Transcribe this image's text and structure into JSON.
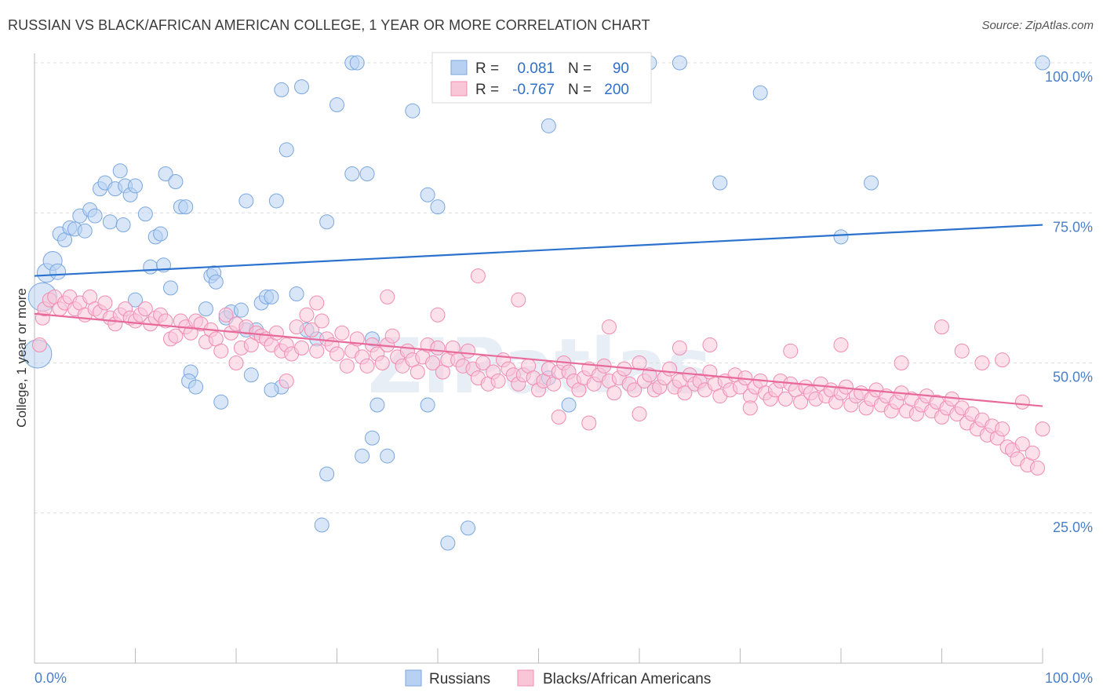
{
  "header": {
    "title": "RUSSIAN VS BLACK/AFRICAN AMERICAN COLLEGE, 1 YEAR OR MORE CORRELATION CHART",
    "source": "Source: ZipAtlas.com"
  },
  "watermark": "ZIPatlas",
  "chart_data": {
    "type": "scatter",
    "ylabel": "College, 1 year or more",
    "xlim": [
      0,
      100
    ],
    "ylim": [
      0,
      100
    ],
    "x_tick_labels": [
      "0.0%",
      "100.0%"
    ],
    "y_ticks": [
      25,
      50,
      75,
      100
    ],
    "y_tick_labels": [
      "25.0%",
      "50.0%",
      "75.0%",
      "100.0%"
    ],
    "grid": true,
    "legend_stats": [
      {
        "r_label": "R =",
        "r_value": "0.081",
        "n_label": "N =",
        "n_value": "90"
      },
      {
        "r_label": "R =",
        "r_value": "-0.767",
        "n_label": "N =",
        "n_value": "200"
      }
    ],
    "series": [
      {
        "name": "Russians",
        "color": "#7aa7e0",
        "fill": "#b8d1f2",
        "line_color": "#2b72cf",
        "trend": [
          [
            0,
            64.5
          ],
          [
            100,
            73.0
          ]
        ],
        "points": [
          [
            0.3,
            51.5
          ],
          [
            0.8,
            61
          ],
          [
            1.2,
            65
          ],
          [
            1.8,
            67
          ],
          [
            2.3,
            65.2
          ],
          [
            2.5,
            71.5
          ],
          [
            3,
            70.5
          ],
          [
            3.5,
            72.5
          ],
          [
            4,
            72.3
          ],
          [
            4.5,
            74.5
          ],
          [
            5,
            72
          ],
          [
            5.5,
            75.5
          ],
          [
            6,
            74.5
          ],
          [
            6.5,
            79
          ],
          [
            7,
            80
          ],
          [
            7.5,
            73.5
          ],
          [
            8,
            79
          ],
          [
            8.5,
            82
          ],
          [
            8.8,
            73
          ],
          [
            9,
            79.5
          ],
          [
            9.5,
            78
          ],
          [
            10,
            79.5
          ],
          [
            11,
            74.8
          ],
          [
            11.5,
            66
          ],
          [
            12,
            71
          ],
          [
            12.5,
            71.5
          ],
          [
            12.8,
            66.3
          ],
          [
            13,
            81.5
          ],
          [
            14,
            80.2
          ],
          [
            14.5,
            76
          ],
          [
            15,
            76
          ],
          [
            13.5,
            62.5
          ],
          [
            10,
            60.5
          ],
          [
            15.5,
            48.5
          ],
          [
            15.3,
            47
          ],
          [
            17,
            59
          ],
          [
            17.5,
            64.5
          ],
          [
            17.8,
            65
          ],
          [
            18,
            63.5
          ],
          [
            19,
            57.5
          ],
          [
            19.5,
            58.5
          ],
          [
            20.5,
            58.8
          ],
          [
            21,
            77
          ],
          [
            21,
            55.5
          ],
          [
            21.5,
            48
          ],
          [
            22,
            55.5
          ],
          [
            22.5,
            60
          ],
          [
            23,
            61
          ],
          [
            23.5,
            61
          ],
          [
            24,
            77
          ],
          [
            24.5,
            46
          ],
          [
            23.5,
            45.5
          ],
          [
            16,
            46
          ],
          [
            18.5,
            43.5
          ],
          [
            24.5,
            95.5
          ],
          [
            25,
            85.5
          ],
          [
            26,
            61.5
          ],
          [
            26.5,
            96
          ],
          [
            27,
            55.5
          ],
          [
            28,
            54
          ],
          [
            29,
            73.5
          ],
          [
            30,
            93
          ],
          [
            31.5,
            81.5
          ],
          [
            31.5,
            100
          ],
          [
            32,
            100
          ],
          [
            33,
            81.5
          ],
          [
            33.5,
            54
          ],
          [
            33.5,
            37.5
          ],
          [
            34,
            43
          ],
          [
            35,
            34.5
          ],
          [
            32.5,
            34.5
          ],
          [
            29,
            31.5
          ],
          [
            28.5,
            23
          ],
          [
            37.5,
            92
          ],
          [
            39,
            43
          ],
          [
            39,
            78
          ],
          [
            40,
            76
          ],
          [
            41,
            20
          ],
          [
            43,
            22.5
          ],
          [
            47,
            100
          ],
          [
            51,
            89.5
          ],
          [
            51,
            47.5
          ],
          [
            53,
            43
          ],
          [
            61,
            100
          ],
          [
            64,
            100
          ],
          [
            68,
            80
          ],
          [
            72,
            95
          ],
          [
            80,
            71
          ],
          [
            83,
            80
          ],
          [
            100,
            100
          ]
        ]
      },
      {
        "name": "Blacks/African Americans",
        "color": "#f08cb0",
        "fill": "#f9c6d8",
        "line_color": "#e86a9a",
        "trend": [
          [
            0,
            58.2
          ],
          [
            100,
            42.8
          ]
        ],
        "points": [
          [
            0.5,
            53
          ],
          [
            0.8,
            57.5
          ],
          [
            1,
            59
          ],
          [
            1.5,
            60.5
          ],
          [
            2,
            61
          ],
          [
            2.5,
            59
          ],
          [
            3,
            60
          ],
          [
            3.5,
            61
          ],
          [
            4,
            59
          ],
          [
            4.5,
            60
          ],
          [
            5,
            58
          ],
          [
            5.5,
            61
          ],
          [
            6,
            59
          ],
          [
            6.5,
            58.5
          ],
          [
            7,
            60
          ],
          [
            7.5,
            57.5
          ],
          [
            8,
            56.5
          ],
          [
            8.5,
            58
          ],
          [
            9,
            59
          ],
          [
            9.5,
            57.5
          ],
          [
            10,
            57
          ],
          [
            10.5,
            58
          ],
          [
            11,
            59
          ],
          [
            11.5,
            56.5
          ],
          [
            12,
            57.5
          ],
          [
            12.5,
            58
          ],
          [
            13,
            57
          ],
          [
            13.5,
            54
          ],
          [
            14,
            54.5
          ],
          [
            14.5,
            57
          ],
          [
            15,
            56
          ],
          [
            15.5,
            55
          ],
          [
            16,
            57
          ],
          [
            16.5,
            56.5
          ],
          [
            17,
            53.5
          ],
          [
            17.5,
            55.5
          ],
          [
            18,
            54
          ],
          [
            18.5,
            52
          ],
          [
            19,
            58
          ],
          [
            19.5,
            55
          ],
          [
            20,
            56.5
          ],
          [
            20.5,
            52.5
          ],
          [
            21,
            56
          ],
          [
            21.5,
            53
          ],
          [
            22,
            55
          ],
          [
            22.5,
            54.5
          ],
          [
            23,
            54
          ],
          [
            23.5,
            53
          ],
          [
            24,
            55
          ],
          [
            24.5,
            52
          ],
          [
            25,
            53
          ],
          [
            25.5,
            51.5
          ],
          [
            26,
            56
          ],
          [
            26.5,
            52.5
          ],
          [
            27,
            58
          ],
          [
            27.5,
            55.5
          ],
          [
            28,
            52
          ],
          [
            28.5,
            57
          ],
          [
            29,
            54
          ],
          [
            29.5,
            53
          ],
          [
            30,
            51.5
          ],
          [
            30.5,
            55
          ],
          [
            31,
            49.5
          ],
          [
            31.5,
            52
          ],
          [
            32,
            54
          ],
          [
            32.5,
            51
          ],
          [
            33,
            49.5
          ],
          [
            33.5,
            53
          ],
          [
            34,
            51.5
          ],
          [
            34.5,
            50
          ],
          [
            35,
            53
          ],
          [
            35.5,
            54.5
          ],
          [
            36,
            51
          ],
          [
            36.5,
            49.5
          ],
          [
            37,
            52
          ],
          [
            37.5,
            50.5
          ],
          [
            38,
            48.5
          ],
          [
            38.5,
            51
          ],
          [
            39,
            53
          ],
          [
            39.5,
            50
          ],
          [
            40,
            52.5
          ],
          [
            40.5,
            48.5
          ],
          [
            41,
            50.5
          ],
          [
            41.5,
            52.5
          ],
          [
            42,
            50.5
          ],
          [
            42.5,
            49.5
          ],
          [
            43,
            52
          ],
          [
            43.5,
            49
          ],
          [
            44,
            47.5
          ],
          [
            44.5,
            50
          ],
          [
            45,
            46.5
          ],
          [
            45.5,
            48.5
          ],
          [
            46,
            47
          ],
          [
            46.5,
            50.5
          ],
          [
            47,
            49
          ],
          [
            47.5,
            48
          ],
          [
            48,
            46.5
          ],
          [
            48.5,
            48
          ],
          [
            49,
            49.5
          ],
          [
            49.5,
            47.5
          ],
          [
            50,
            45.5
          ],
          [
            50.5,
            47
          ],
          [
            51,
            49
          ],
          [
            51.5,
            46.5
          ],
          [
            52,
            48.5
          ],
          [
            52.5,
            50
          ],
          [
            53,
            48.5
          ],
          [
            53.5,
            47
          ],
          [
            54,
            45.5
          ],
          [
            54.5,
            47.5
          ],
          [
            55,
            49
          ],
          [
            55.5,
            46.5
          ],
          [
            56,
            48
          ],
          [
            56.5,
            49.5
          ],
          [
            57,
            47
          ],
          [
            57.5,
            45
          ],
          [
            58,
            47.5
          ],
          [
            58.5,
            49
          ],
          [
            59,
            46.5
          ],
          [
            59.5,
            45.5
          ],
          [
            60,
            50
          ],
          [
            60.5,
            47
          ],
          [
            61,
            48
          ],
          [
            61.5,
            45.5
          ],
          [
            62,
            46
          ],
          [
            62.5,
            47.5
          ],
          [
            63,
            49
          ],
          [
            63.5,
            46
          ],
          [
            64,
            47
          ],
          [
            64.5,
            45
          ],
          [
            65,
            48
          ],
          [
            65.5,
            46.5
          ],
          [
            66,
            47
          ],
          [
            66.5,
            45.5
          ],
          [
            67,
            48.5
          ],
          [
            67.5,
            46.5
          ],
          [
            68,
            44.5
          ],
          [
            68.5,
            47
          ],
          [
            69,
            45.5
          ],
          [
            69.5,
            48
          ],
          [
            70,
            46
          ],
          [
            70.5,
            47.5
          ],
          [
            71,
            44.5
          ],
          [
            71.5,
            46
          ],
          [
            72,
            47
          ],
          [
            72.5,
            45
          ],
          [
            73,
            44
          ],
          [
            73.5,
            45.5
          ],
          [
            74,
            47
          ],
          [
            74.5,
            44
          ],
          [
            75,
            46.5
          ],
          [
            75.5,
            45.5
          ],
          [
            76,
            43.5
          ],
          [
            76.5,
            46
          ],
          [
            77,
            45
          ],
          [
            77.5,
            44
          ],
          [
            78,
            46.5
          ],
          [
            78.5,
            44.5
          ],
          [
            79,
            45.5
          ],
          [
            79.5,
            43.5
          ],
          [
            80,
            45
          ],
          [
            80.5,
            46
          ],
          [
            81,
            43
          ],
          [
            81.5,
            44.5
          ],
          [
            82,
            45
          ],
          [
            82.5,
            42.5
          ],
          [
            83,
            44
          ],
          [
            83.5,
            45.5
          ],
          [
            84,
            43
          ],
          [
            84.5,
            44.5
          ],
          [
            85,
            42
          ],
          [
            85.5,
            43.5
          ],
          [
            86,
            45
          ],
          [
            86.5,
            42
          ],
          [
            87,
            44
          ],
          [
            87.5,
            41.5
          ],
          [
            88,
            43
          ],
          [
            88.5,
            44.5
          ],
          [
            89,
            42
          ],
          [
            89.5,
            43.5
          ],
          [
            90,
            41
          ],
          [
            90.5,
            42.5
          ],
          [
            91,
            44
          ],
          [
            91.5,
            41.5
          ],
          [
            92,
            42.5
          ],
          [
            92.5,
            40
          ],
          [
            93,
            41.5
          ],
          [
            93.5,
            39
          ],
          [
            94,
            40.5
          ],
          [
            94.5,
            38
          ],
          [
            95,
            39.5
          ],
          [
            95.5,
            37.5
          ],
          [
            96,
            39
          ],
          [
            96.5,
            36
          ],
          [
            97,
            35.5
          ],
          [
            97.5,
            34
          ],
          [
            98,
            36.5
          ],
          [
            98.5,
            33
          ],
          [
            99,
            35
          ],
          [
            99.5,
            32.5
          ],
          [
            100,
            39
          ],
          [
            20,
            50
          ],
          [
            25,
            47
          ],
          [
            28,
            60
          ],
          [
            35,
            61
          ],
          [
            40,
            58
          ],
          [
            44,
            64.5
          ],
          [
            48,
            60.5
          ],
          [
            52,
            41
          ],
          [
            55,
            40
          ],
          [
            57,
            56
          ],
          [
            60,
            41.5
          ],
          [
            64,
            52.5
          ],
          [
            67,
            53
          ],
          [
            71,
            42.5
          ],
          [
            75,
            52
          ],
          [
            80,
            53
          ],
          [
            86,
            50
          ],
          [
            90,
            56
          ],
          [
            92,
            52
          ],
          [
            94,
            50
          ],
          [
            96,
            50.5
          ],
          [
            98,
            43.5
          ]
        ]
      }
    ]
  },
  "bottom_legend": {
    "russians": "Russians",
    "blacks": "Blacks/African Americans"
  }
}
